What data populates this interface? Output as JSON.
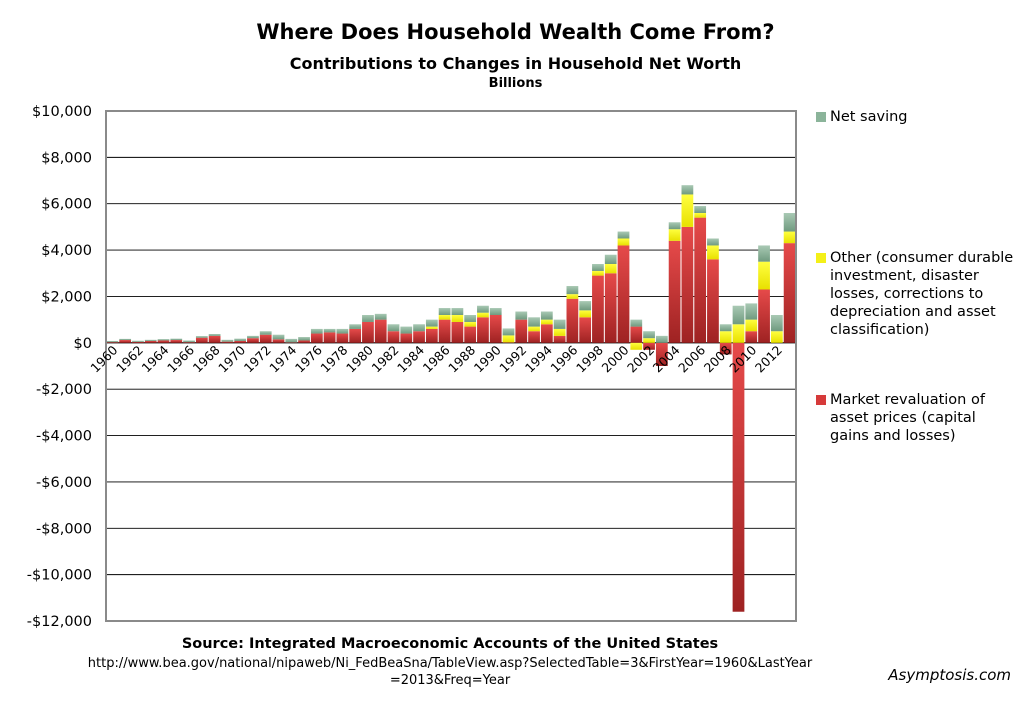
{
  "title": "Where Does Household Wealth Come From?",
  "subtitle": "Contributions to Changes in Household Net Worth",
  "units": "Billions",
  "source": "Source: Integrated Macroeconomic Accounts of the United States",
  "url_line1": "http://www.bea.gov/national/nipaweb/Ni_FedBeaSna/TableView.asp?SelectedTable=3&FirstYear=1960&LastYear",
  "url_line2": "=2013&Freq=Year",
  "credit": "Asymptosis.com",
  "chart_data": {
    "type": "bar",
    "stacked": true,
    "title": "Where Does Household Wealth Come From?",
    "subtitle": "Contributions to Changes in Household Net Worth",
    "ylabel": "",
    "xlabel": "",
    "ylim": [
      -12000,
      10000
    ],
    "yticks": [
      10000,
      8000,
      6000,
      4000,
      2000,
      0,
      -2000,
      -4000,
      -6000,
      -8000,
      -10000,
      -12000
    ],
    "ytick_labels": [
      "$10,000",
      "$8,000",
      "$6,000",
      "$4,000",
      "$2,000",
      "$0",
      "-$2,000",
      "-$4,000",
      "-$6,000",
      "-$8,000",
      "-$10,000",
      "-$12,000"
    ],
    "xtick_labels": [
      "1960",
      "1962",
      "1964",
      "1966",
      "1968",
      "1970",
      "1972",
      "1974",
      "1976",
      "1978",
      "1980",
      "1982",
      "1984",
      "1986",
      "1988",
      "1990",
      "1992",
      "1994",
      "1996",
      "1998",
      "2000",
      "2002",
      "2004",
      "2006",
      "2008",
      "2010",
      "2012"
    ],
    "grid": true,
    "legend_position": "right",
    "categories": [
      "1960",
      "1961",
      "1962",
      "1963",
      "1964",
      "1965",
      "1966",
      "1967",
      "1968",
      "1969",
      "1970",
      "1971",
      "1972",
      "1973",
      "1974",
      "1975",
      "1976",
      "1977",
      "1978",
      "1979",
      "1980",
      "1981",
      "1982",
      "1983",
      "1984",
      "1985",
      "1986",
      "1987",
      "1988",
      "1989",
      "1990",
      "1991",
      "1992",
      "1993",
      "1994",
      "1995",
      "1996",
      "1997",
      "1998",
      "1999",
      "2000",
      "2001",
      "2002",
      "2003",
      "2004",
      "2005",
      "2006",
      "2007",
      "2008",
      "2009",
      "2010",
      "2011",
      "2012",
      "2013"
    ],
    "series": [
      {
        "name": "Market revaluation of asset prices (capital gains and losses)",
        "color": "#d63a3a",
        "values": [
          30,
          120,
          40,
          80,
          100,
          120,
          30,
          220,
          300,
          50,
          80,
          200,
          350,
          150,
          20,
          100,
          400,
          450,
          400,
          600,
          900,
          1000,
          500,
          400,
          500,
          600,
          1000,
          900,
          700,
          1100,
          1200,
          20,
          1000,
          500,
          800,
          300,
          1900,
          1100,
          2900,
          3000,
          4200,
          700,
          -300,
          -1000,
          4400,
          5000,
          5400,
          3600,
          -500,
          -11600,
          500,
          2300,
          0,
          4300
        ]
      },
      {
        "name": "Other (consumer durable investment, disaster losses, corrections to depreciation and asset classification)",
        "color": "#f4f018",
        "values": [
          0,
          0,
          0,
          0,
          0,
          0,
          0,
          0,
          0,
          0,
          0,
          0,
          0,
          0,
          0,
          0,
          0,
          0,
          0,
          0,
          0,
          0,
          0,
          0,
          0,
          100,
          200,
          300,
          200,
          200,
          0,
          300,
          0,
          200,
          200,
          300,
          200,
          300,
          200,
          400,
          300,
          -300,
          200,
          0,
          500,
          1400,
          200,
          600,
          500,
          800,
          500,
          1200,
          500,
          500
        ]
      },
      {
        "name": "Net saving",
        "color": "#8bb49a",
        "values": [
          50,
          50,
          50,
          50,
          60,
          60,
          70,
          70,
          80,
          80,
          100,
          100,
          150,
          200,
          150,
          150,
          200,
          150,
          200,
          200,
          300,
          250,
          300,
          300,
          300,
          300,
          300,
          300,
          300,
          300,
          300,
          300,
          350,
          400,
          350,
          400,
          350,
          400,
          300,
          400,
          300,
          300,
          300,
          300,
          300,
          400,
          300,
          300,
          300,
          800,
          700,
          700,
          700,
          800
        ]
      }
    ],
    "stack_order": [
      "Market revaluation of asset prices (capital gains and losses)",
      "Other (consumer durable investment, disaster losses, corrections to depreciation and asset classification)",
      "Net saving"
    ]
  }
}
